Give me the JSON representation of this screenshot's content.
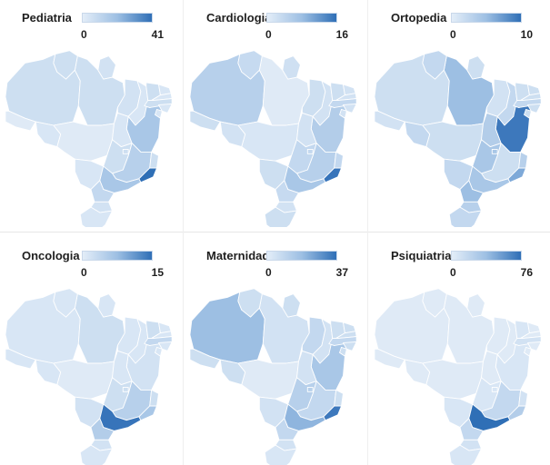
{
  "panels": [
    {
      "title": "Pediatria",
      "min": "0",
      "max": "41",
      "fills": {
        "RR": "#cddff1",
        "AP": "#d2e2f3",
        "AM": "#cddff1",
        "PA": "#cddff1",
        "MA": "#d2e2f3",
        "PI": "#d8e6f5",
        "CE": "#cddff1",
        "RN": "#d8e6f5",
        "PB": "#d8e6f5",
        "PE": "#cddff1",
        "AL": "#d8e6f5",
        "SE": "#d8e6f5",
        "BA": "#a9c7e7",
        "TO": "#d8e6f5",
        "AC": "#dfeaf6",
        "RO": "#d8e6f5",
        "MT": "#dfeaf6",
        "GO": "#cddff1",
        "DF": "#cddff1",
        "MS": "#d8e6f5",
        "MG": "#b7d0eb",
        "ES": "#cddff1",
        "RJ": "#2f6fb6",
        "SP": "#a9c7e7",
        "PR": "#c3d8ef",
        "SC": "#d2e2f3",
        "RS": "#d8e6f5"
      }
    },
    {
      "title": "Cardiologia",
      "min": "0",
      "max": "16",
      "fills": {
        "RR": "#c6daf0",
        "AP": "#cfe0f2",
        "AM": "#b7d0eb",
        "PA": "#dfeaf6",
        "MA": "#cddff1",
        "PI": "#d2e2f3",
        "CE": "#cddff1",
        "RN": "#d2e2f3",
        "PB": "#d2e2f3",
        "PE": "#c3d8ef",
        "AL": "#d2e2f3",
        "SE": "#d2e2f3",
        "BA": "#b3cde9",
        "TO": "#d2e2f3",
        "AC": "#cddff1",
        "RO": "#d2e2f3",
        "MT": "#d8e6f5",
        "GO": "#c3d8ef",
        "DF": "#c3d8ef",
        "MS": "#cddff1",
        "MG": "#b7d0eb",
        "ES": "#c3d8ef",
        "RJ": "#3774ba",
        "SP": "#a9c7e7",
        "PR": "#c6daf0",
        "SC": "#d2e2f3",
        "RS": "#cddff1"
      }
    },
    {
      "title": "Ortopedia",
      "min": "0",
      "max": "10",
      "fills": {
        "RR": "#c3d8ef",
        "AP": "#cddff1",
        "AM": "#cddff1",
        "PA": "#9dbfe3",
        "MA": "#d2e2f3",
        "PI": "#c3d8ef",
        "CE": "#cddff1",
        "RN": "#cddff1",
        "PB": "#cddff1",
        "PE": "#c3d8ef",
        "AL": "#cddff1",
        "SE": "#cddff1",
        "BA": "#3d78bc",
        "TO": "#b3cde9",
        "AC": "#d2e2f3",
        "RO": "#c3d8ef",
        "MT": "#cddff1",
        "GO": "#a9c7e7",
        "DF": "#a9c7e7",
        "MS": "#c3d8ef",
        "MG": "#cddff1",
        "ES": "#b7d0eb",
        "RJ": "#7ea9d8",
        "SP": "#a9c7e7",
        "PR": "#9dbfe3",
        "SC": "#b7d0eb",
        "RS": "#c3d8ef"
      }
    },
    {
      "title": "Oncologia",
      "min": "0",
      "max": "15",
      "fills": {
        "RR": "#d8e6f5",
        "AP": "#d8e6f5",
        "AM": "#d8e6f5",
        "PA": "#cddff1",
        "MA": "#d8e6f5",
        "PI": "#d8e6f5",
        "CE": "#cddff1",
        "RN": "#d8e6f5",
        "PB": "#d8e6f5",
        "PE": "#c3d8ef",
        "AL": "#d8e6f5",
        "SE": "#d8e6f5",
        "BA": "#d2e2f3",
        "TO": "#d8e6f5",
        "AC": "#d8e6f5",
        "RO": "#d8e6f5",
        "MT": "#dfeaf6",
        "GO": "#cddff1",
        "DF": "#cddff1",
        "MS": "#d2e2f3",
        "MG": "#b7d0eb",
        "ES": "#cddff1",
        "RJ": "#a9c7e7",
        "SP": "#3774ba",
        "PR": "#b3cde9",
        "SC": "#d2e2f3",
        "RS": "#d8e6f5"
      }
    },
    {
      "title": "Maternidade",
      "min": "0",
      "max": "37",
      "fills": {
        "RR": "#cddff1",
        "AP": "#cddff1",
        "AM": "#9dbfe3",
        "PA": "#d2e2f3",
        "MA": "#c3d8ef",
        "PI": "#d2e2f3",
        "CE": "#cddff1",
        "RN": "#cddff1",
        "PB": "#cddff1",
        "PE": "#c3d8ef",
        "AL": "#cddff1",
        "SE": "#cddff1",
        "BA": "#a9c7e7",
        "TO": "#d2e2f3",
        "AC": "#cddff1",
        "RO": "#cddff1",
        "MT": "#dfeaf6",
        "GO": "#b7d0eb",
        "DF": "#b7d0eb",
        "MS": "#d2e2f3",
        "MG": "#c3d8ef",
        "ES": "#cddff1",
        "RJ": "#3d78bc",
        "SP": "#8fb5de",
        "PR": "#c3d8ef",
        "SC": "#d2e2f3",
        "RS": "#d8e6f5"
      }
    },
    {
      "title": "Psiquiatria",
      "min": "0",
      "max": "76",
      "fills": {
        "RR": "#dfeaf6",
        "AP": "#dfeaf6",
        "AM": "#dfeaf6",
        "PA": "#dfeaf6",
        "MA": "#dfeaf6",
        "PI": "#dfeaf6",
        "CE": "#d8e6f5",
        "RN": "#dfeaf6",
        "PB": "#dfeaf6",
        "PE": "#d2e2f3",
        "AL": "#dfeaf6",
        "SE": "#dfeaf6",
        "BA": "#d8e6f5",
        "TO": "#dfeaf6",
        "AC": "#dfeaf6",
        "RO": "#dfeaf6",
        "MT": "#dfeaf6",
        "GO": "#d8e6f5",
        "DF": "#d8e6f5",
        "MS": "#d8e6f5",
        "MG": "#c3d8ef",
        "ES": "#d2e2f3",
        "RJ": "#b3cde9",
        "SP": "#2f6fb6",
        "PR": "#c3d8ef",
        "SC": "#d2e2f3",
        "RS": "#d8e6f5"
      }
    }
  ]
}
